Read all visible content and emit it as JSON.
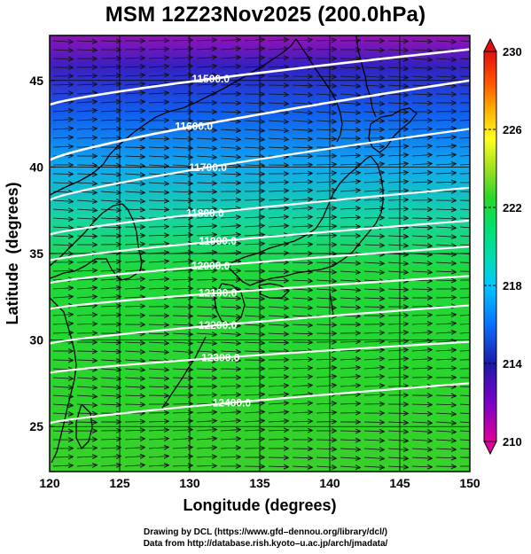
{
  "title": "MSM 12Z23Nov2025 (200.0hPa)",
  "credits": {
    "line1": "Drawing by DCL (https://www.gfd–dennou.org/library/dcl/)",
    "line2": "Data from http://database.rish.kyoto–u.ac.jp/arch/jmadata/"
  },
  "map": {
    "x_label": "Longitude (degrees)",
    "y_label": "Latitude  (degrees)",
    "lon_range": [
      120,
      150
    ],
    "lat_range": [
      22.4,
      47.6
    ],
    "lon_ticks": [
      120,
      125,
      130,
      135,
      140,
      145,
      150
    ],
    "lat_ticks": [
      25,
      30,
      35,
      40,
      45
    ],
    "gridlines": true,
    "shading_variable": "temperature (K)",
    "contour_variable": "geopotential height (m)",
    "vector_variable": "wind"
  },
  "contours": [
    {
      "label": "11500.0",
      "lat_west": 43.6,
      "lat_east": 46.8,
      "label_lon": 131.5
    },
    {
      "label": "11600.0",
      "lat_west": 40.4,
      "lat_east": 45.0,
      "label_lon": 130.3
    },
    {
      "label": "11700.0",
      "lat_west": 38.1,
      "lat_east": 42.2,
      "label_lon": 131.3
    },
    {
      "label": "11800.0",
      "lat_west": 36.1,
      "lat_east": 38.8,
      "label_lon": 131.1
    },
    {
      "label": "11900.0",
      "lat_west": 34.6,
      "lat_east": 36.9,
      "label_lon": 132.0
    },
    {
      "label": "12000.0",
      "lat_west": 33.3,
      "lat_east": 35.4,
      "label_lon": 131.5
    },
    {
      "label": "12100.0",
      "lat_west": 31.8,
      "lat_east": 33.7,
      "label_lon": 132.0
    },
    {
      "label": "12200.0",
      "lat_west": 29.8,
      "lat_east": 32.0,
      "label_lon": 132.0
    },
    {
      "label": "12300.0",
      "lat_west": 28.1,
      "lat_east": 29.9,
      "label_lon": 132.2
    },
    {
      "label": "12400.0",
      "lat_west": 25.2,
      "lat_east": 27.5,
      "label_lon": 133.0
    }
  ],
  "colorbar": {
    "min": 210,
    "max": 230,
    "tick_labels": [
      "230",
      "226",
      "222",
      "218",
      "214",
      "210"
    ],
    "tick_values": [
      230,
      226,
      222,
      218,
      214,
      210
    ],
    "stops": [
      {
        "value": 210,
        "color": "#e0009a"
      },
      {
        "value": 212,
        "color": "#7a00c8"
      },
      {
        "value": 214,
        "color": "#1c1aa8"
      },
      {
        "value": 216,
        "color": "#0a70ff"
      },
      {
        "value": 218,
        "color": "#00c8ff"
      },
      {
        "value": 219.5,
        "color": "#00ddb0"
      },
      {
        "value": 221,
        "color": "#00e070"
      },
      {
        "value": 222.5,
        "color": "#2ad72a"
      },
      {
        "value": 224,
        "color": "#a0e020"
      },
      {
        "value": 225.5,
        "color": "#ffff1e"
      },
      {
        "value": 227,
        "color": "#ffb000"
      },
      {
        "value": 228.5,
        "color": "#ff5000"
      },
      {
        "value": 230,
        "color": "#e01010"
      }
    ]
  },
  "colors": {
    "contour": "#ffffff",
    "coast": "#000000",
    "vector": "#111111"
  }
}
